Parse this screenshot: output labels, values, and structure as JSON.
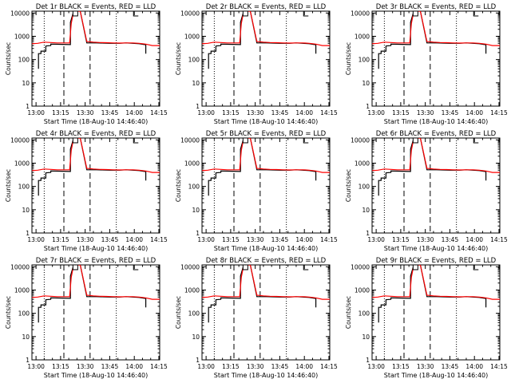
{
  "common": {
    "ylabel": "Counts/sec",
    "xlabel": "Start Time (18-Aug-10 14:46:40)",
    "x_ticks": [
      "13:00",
      "13:15",
      "13:30",
      "13:45",
      "14:00",
      "14:15"
    ],
    "y_ticks": [
      "1",
      "10",
      "100",
      "1000",
      "10000"
    ],
    "xlim_minutes": [
      12.5,
      90.5
    ],
    "ylim": [
      1,
      12000
    ],
    "yscale": "log",
    "colors": {
      "events": "#000000",
      "lld": "#ff0000"
    }
  },
  "panels": [
    {
      "title": "Det 1r BLACK = Events, RED = LLD"
    },
    {
      "title": "Det 2r BLACK = Events, RED = LLD"
    },
    {
      "title": "Det 3r BLACK = Events, RED = LLD"
    },
    {
      "title": "Det 4r BLACK = Events, RED = LLD"
    },
    {
      "title": "Det 5r BLACK = Events, RED = LLD"
    },
    {
      "title": "Det 6r BLACK = Events, RED = LLD"
    },
    {
      "title": "Det 7r BLACK = Events, RED = LLD"
    },
    {
      "title": "Det 8r BLACK = Events, RED = LLD"
    },
    {
      "title": "Det 9r BLACK = Events, RED = LLD"
    }
  ],
  "chart_data": {
    "type": "line",
    "yscale": "log",
    "x_unit": "minutes after 12:45",
    "events": {
      "name": "Events",
      "x": [
        16.5,
        16.5,
        18,
        18,
        21,
        21,
        24,
        24,
        36,
        36,
        38,
        42,
        46,
        52,
        56,
        60,
        66,
        70,
        74,
        78,
        82,
        82
      ],
      "y": [
        40,
        180,
        180,
        230,
        230,
        380,
        400,
        460,
        440,
        4000,
        12000,
        12000,
        520,
        520,
        510,
        500,
        500,
        520,
        500,
        480,
        430,
        180
      ]
    },
    "lld": {
      "name": "LLD",
      "x": [
        12.5,
        16,
        20,
        24,
        28,
        32,
        35.5,
        36.5,
        38,
        42,
        46,
        50,
        54,
        58,
        62,
        66,
        70,
        74,
        78,
        82,
        86,
        90.5
      ],
      "y": [
        480,
        500,
        560,
        540,
        520,
        520,
        520,
        3500,
        12000,
        12000,
        600,
        560,
        540,
        530,
        520,
        510,
        520,
        520,
        500,
        460,
        400,
        400
      ]
    },
    "dotted_vlines": [
      20,
      64
    ],
    "dashed_vlines": [
      32,
      48
    ],
    "markers": [
      {
        "x": 39,
        "y": 9500,
        "shape": "square"
      },
      {
        "x": 76,
        "y": 9500,
        "shape": "hook"
      }
    ]
  }
}
